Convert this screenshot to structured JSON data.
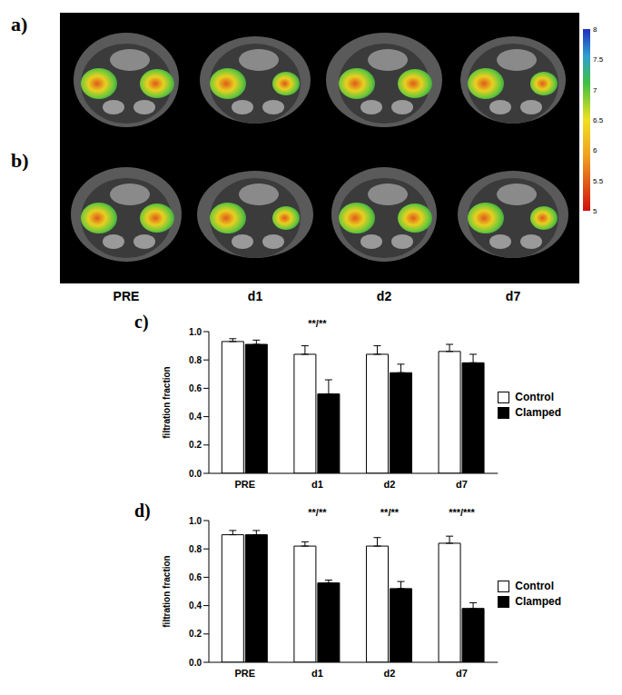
{
  "image_panel": {
    "row_labels": [
      "a)",
      "b)"
    ],
    "column_labels": [
      "PRE",
      "d1",
      "d2",
      "d7"
    ],
    "colorbar": {
      "range": [
        5,
        8
      ],
      "ticks": [
        5,
        5.5,
        6,
        6.5,
        7,
        7.5,
        8
      ]
    }
  },
  "chart_data": [
    {
      "panel_label": "c)",
      "type": "bar",
      "categories": [
        "PRE",
        "d1",
        "d2",
        "d7"
      ],
      "y_label": "filtration fraction",
      "ylim": [
        0,
        1
      ],
      "yticks": [
        {
          "value": 0,
          "label": "0.0"
        },
        {
          "value": 0.2,
          "label": "0.2"
        },
        {
          "value": 0.4,
          "label": "0.4"
        },
        {
          "value": 0.6,
          "label": "0.6"
        },
        {
          "value": 0.8,
          "label": "0.8"
        },
        {
          "value": 1,
          "label": "1.0"
        }
      ],
      "legend": "right",
      "series": [
        {
          "name": "Control",
          "color": "#ffffff",
          "values": [
            0.93,
            0.84,
            0.84,
            0.86
          ],
          "errors": [
            0.02,
            0.06,
            0.06,
            0.05
          ]
        },
        {
          "name": "Clamped",
          "color": "#000000",
          "values": [
            0.91,
            0.56,
            0.71,
            0.78
          ],
          "errors": [
            0.03,
            0.1,
            0.06,
            0.06
          ]
        }
      ],
      "annotations": [
        {
          "category": "d1",
          "text": "**/**"
        }
      ]
    },
    {
      "panel_label": "d)",
      "type": "bar",
      "categories": [
        "PRE",
        "d1",
        "d2",
        "d7"
      ],
      "y_label": "filtration fraction",
      "ylim": [
        0,
        1
      ],
      "yticks": [
        {
          "value": 0,
          "label": "0.0"
        },
        {
          "value": 0.2,
          "label": "0.2"
        },
        {
          "value": 0.4,
          "label": "0.4"
        },
        {
          "value": 0.6,
          "label": "0.6"
        },
        {
          "value": 0.8,
          "label": "0.8"
        },
        {
          "value": 1,
          "label": "1.0"
        }
      ],
      "legend": "right",
      "series": [
        {
          "name": "Control",
          "color": "#ffffff",
          "values": [
            0.9,
            0.82,
            0.82,
            0.84
          ],
          "errors": [
            0.03,
            0.03,
            0.06,
            0.05
          ]
        },
        {
          "name": "Clamped",
          "color": "#000000",
          "values": [
            0.9,
            0.56,
            0.52,
            0.38
          ],
          "errors": [
            0.03,
            0.02,
            0.05,
            0.04
          ]
        }
      ],
      "annotations": [
        {
          "category": "d1",
          "text": "**/**"
        },
        {
          "category": "d2",
          "text": "**/**"
        },
        {
          "category": "d7",
          "text": "***/***"
        }
      ]
    }
  ]
}
